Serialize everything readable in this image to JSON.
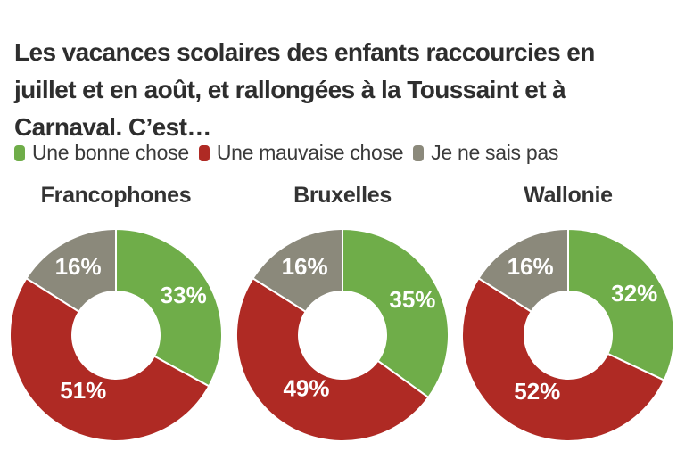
{
  "title": {
    "lines": [
      "Les vacances scolaires des enfants raccourcies en",
      "juillet et en août, et rallongées à la Toussaint et à",
      "Carnaval. C’est…"
    ]
  },
  "legend": {
    "items": [
      {
        "label": "Une bonne chose",
        "color": "#6fad49"
      },
      {
        "label": "Une mauvaise chose",
        "color": "#af2a24"
      },
      {
        "label": "Je ne sais pas",
        "color": "#8b897b"
      }
    ]
  },
  "chart_data": {
    "type": "pie",
    "subtype": "donut",
    "title": "Les vacances scolaires des enfants raccourcies en juillet et en août, et rallongées à la Toussaint et à Carnaval. C’est…",
    "legend_position": "top",
    "direction": "clockwise",
    "start_angle_deg": 0,
    "inner_radius_ratio": 0.41,
    "categories": [
      "Une bonne chose",
      "Une mauvaise chose",
      "Je ne sais pas"
    ],
    "colors": [
      "#6fad49",
      "#af2a24",
      "#8b897b"
    ],
    "charts": [
      {
        "title": "Francophones",
        "values": [
          33,
          51,
          16
        ],
        "labels": [
          "33%",
          "51%",
          "16%"
        ]
      },
      {
        "title": "Bruxelles",
        "values": [
          35,
          49,
          16
        ],
        "labels": [
          "35%",
          "49%",
          "16%"
        ]
      },
      {
        "title": "Wallonie",
        "values": [
          32,
          52,
          16
        ],
        "labels": [
          "32%",
          "52%",
          "16%"
        ]
      }
    ],
    "value_label_color": "#ffffff",
    "text_color": "#2e2e2e"
  }
}
